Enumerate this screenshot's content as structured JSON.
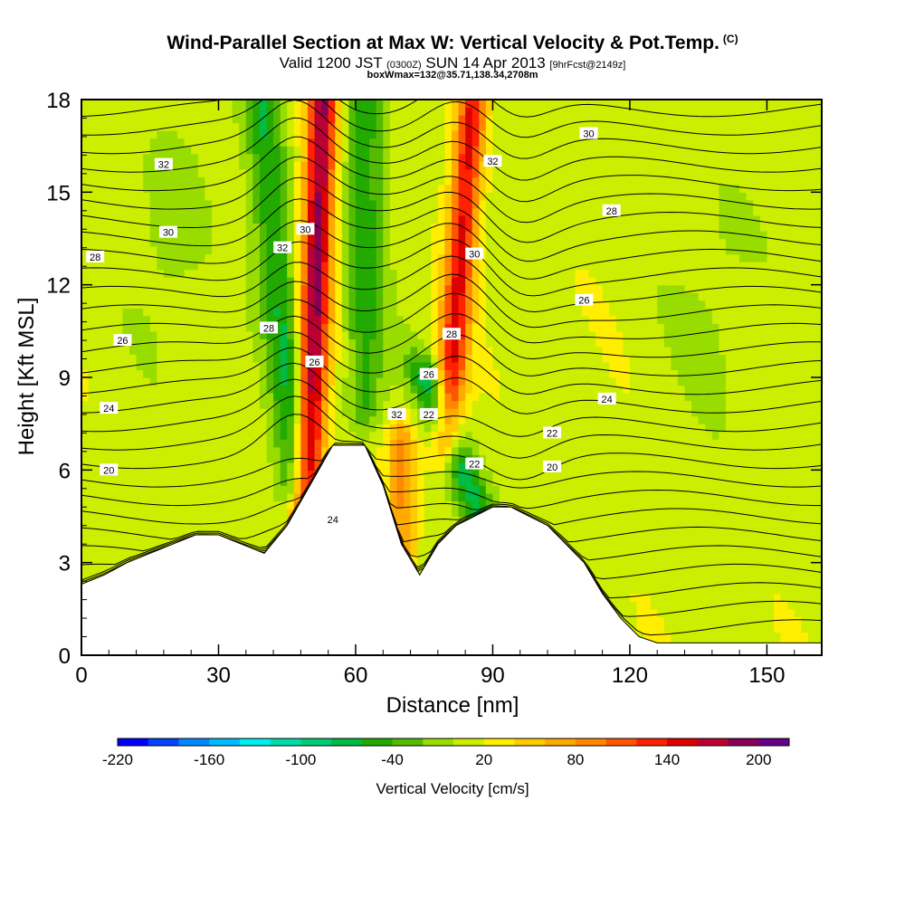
{
  "header": {
    "title": "Wind-Parallel Section at Max W: Vertical Velocity & Pot.Temp.",
    "copyright": "(C)",
    "valid_prefix": "Valid 1200 JST",
    "valid_utc": "(0300Z)",
    "valid_date": "SUN 14 Apr 2013",
    "forecast": "[9hrFcst@2149z]",
    "box_info": "boxWmax=132@35.71,138.34,2708m"
  },
  "chart_data": {
    "type": "heatmap",
    "xlabel": "Distance [nm]",
    "ylabel": "Height [Kft MSL]",
    "xlim": [
      0,
      162
    ],
    "ylim": [
      0,
      18
    ],
    "x_ticks": [
      0,
      30,
      60,
      90,
      120,
      150
    ],
    "y_ticks": [
      0,
      3,
      6,
      9,
      12,
      15,
      18
    ],
    "colorbar": {
      "label": "Vertical Velocity [cm/s]",
      "range": [
        -220,
        220
      ],
      "tick_labels": [
        -220,
        -160,
        -100,
        -40,
        20,
        80,
        140,
        200
      ],
      "colors": [
        "#0000ff",
        "#0044ff",
        "#0088ff",
        "#00bbff",
        "#00eeee",
        "#00ddaa",
        "#00cc77",
        "#00bb44",
        "#22aa00",
        "#55bb00",
        "#99dd00",
        "#ccee00",
        "#ffee00",
        "#ffcc00",
        "#ffaa00",
        "#ff8800",
        "#ff5500",
        "#ff2200",
        "#dd0000",
        "#bb0033",
        "#880055",
        "#660088"
      ]
    },
    "terrain": [
      [
        0,
        2.3
      ],
      [
        5,
        2.6
      ],
      [
        10,
        3.0
      ],
      [
        15,
        3.3
      ],
      [
        20,
        3.6
      ],
      [
        25,
        3.9
      ],
      [
        30,
        3.9
      ],
      [
        35,
        3.6
      ],
      [
        40,
        3.3
      ],
      [
        45,
        4.2
      ],
      [
        50,
        5.5
      ],
      [
        55,
        6.8
      ],
      [
        62,
        6.8
      ],
      [
        66,
        5.5
      ],
      [
        70,
        3.6
      ],
      [
        74,
        2.6
      ],
      [
        78,
        3.6
      ],
      [
        82,
        4.2
      ],
      [
        86,
        4.5
      ],
      [
        90,
        4.8
      ],
      [
        94,
        4.8
      ],
      [
        98,
        4.5
      ],
      [
        102,
        4.2
      ],
      [
        106,
        3.6
      ],
      [
        110,
        3.0
      ],
      [
        114,
        2.0
      ],
      [
        118,
        1.2
      ],
      [
        122,
        0.6
      ],
      [
        126,
        0.4
      ],
      [
        162,
        0.4
      ]
    ],
    "vertical_velocity_features": [
      {
        "kind": "updraft",
        "x": 51,
        "y": [
          4.0,
          18.0
        ],
        "lean": 2.0,
        "peak": 170
      },
      {
        "kind": "updraft",
        "x": 83,
        "y": [
          8.0,
          18.0
        ],
        "lean": 3.0,
        "peak": 130
      },
      {
        "kind": "updraft",
        "x": 70,
        "y": [
          2.5,
          6.0
        ],
        "lean": 0.0,
        "peak": 70
      },
      {
        "kind": "downdraft",
        "x": 43,
        "y": [
          6.5,
          18.0
        ],
        "lean": -4.0,
        "peak": -70
      },
      {
        "kind": "downdraft",
        "x": 62,
        "y": [
          9.0,
          18.0
        ],
        "lean": 0.0,
        "peak": -60
      },
      {
        "kind": "downdraft",
        "x": 84,
        "y": [
          3.5,
          8.0
        ],
        "lean": -8.0,
        "peak": -80
      }
    ],
    "potential_temperature_labels": [
      "32",
      "30",
      "28",
      "26",
      "24",
      "20",
      "30",
      "32",
      "28",
      "26",
      "32",
      "30",
      "28",
      "26",
      "22",
      "24",
      "22",
      "32",
      "30",
      "28",
      "26",
      "24",
      "22",
      "20"
    ]
  }
}
